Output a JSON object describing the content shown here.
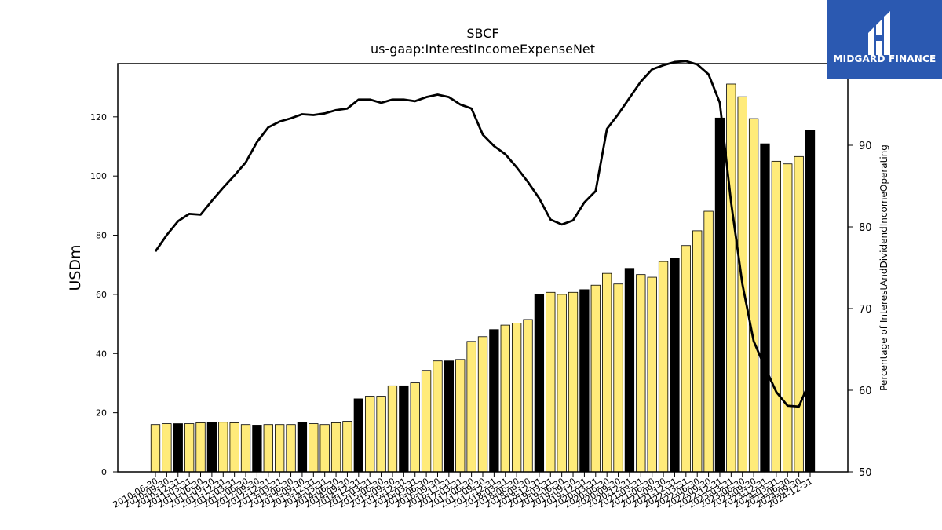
{
  "chart_data": {
    "type": "bar",
    "title": "SBCF",
    "subtitle": "us-gaap:InterestIncomeExpenseNet",
    "ylabel": "USDm",
    "y2label": "Percentage of InterestAndDividendIncomeOperating",
    "ylim": [
      0,
      138
    ],
    "y2lim": [
      50,
      100
    ],
    "yticks": [
      0,
      20,
      40,
      60,
      80,
      100,
      120
    ],
    "y2ticks": [
      50,
      60,
      70,
      80,
      90
    ],
    "categories": [
      "2010-06-30",
      "2010-09-30",
      "2010-12-31",
      "2011-03-31",
      "2011-06-30",
      "2011-09-30",
      "2011-12-31",
      "2012-03-31",
      "2012-06-30",
      "2012-09-30",
      "2012-12-31",
      "2013-03-31",
      "2013-06-30",
      "2013-09-30",
      "2013-12-31",
      "2014-03-31",
      "2014-06-30",
      "2014-09-30",
      "2014-12-31",
      "2015-03-31",
      "2015-06-30",
      "2015-09-30",
      "2015-12-31",
      "2016-03-31",
      "2016-06-30",
      "2016-09-30",
      "2016-12-31",
      "2017-03-31",
      "2017-06-30",
      "2017-09-30",
      "2017-12-31",
      "2018-03-31",
      "2018-06-30",
      "2018-09-30",
      "2018-12-31",
      "2019-03-31",
      "2019-06-30",
      "2019-09-30",
      "2019-12-31",
      "2020-03-31",
      "2020-06-30",
      "2020-09-30",
      "2020-12-31",
      "2021-03-31",
      "2021-06-30",
      "2021-09-30",
      "2021-12-31",
      "2022-03-31",
      "2022-06-30",
      "2022-09-30",
      "2022-12-31",
      "2023-03-31",
      "2023-06-30",
      "2023-09-30",
      "2023-12-31",
      "2024-03-31",
      "2024-06-30",
      "2024-09-30",
      "2024-12-31"
    ],
    "series": [
      {
        "kind": "bar",
        "axis": "left",
        "values": [
          16.0,
          16.3,
          16.3,
          16.3,
          16.6,
          16.8,
          16.8,
          16.6,
          16.0,
          15.8,
          16.0,
          16.0,
          16.0,
          16.8,
          16.3,
          16.0,
          16.6,
          17.1,
          24.7,
          25.6,
          25.6,
          29.1,
          29.1,
          30.1,
          34.3,
          37.5,
          37.5,
          38.0,
          44.1,
          45.7,
          48.1,
          49.6,
          50.3,
          51.5,
          60.0,
          60.7,
          60.0,
          60.7,
          61.6,
          63.1,
          67.1,
          63.5,
          68.8,
          66.7,
          65.8,
          71.1,
          72.1,
          76.5,
          81.5,
          88.1,
          119.6,
          131.1,
          126.8,
          119.4,
          110.9,
          105.0,
          104.1,
          106.6,
          115.6
        ],
        "highlighted": [
          false,
          false,
          true,
          false,
          false,
          true,
          false,
          false,
          false,
          true,
          false,
          false,
          false,
          true,
          false,
          false,
          false,
          false,
          true,
          false,
          false,
          false,
          true,
          false,
          false,
          false,
          true,
          false,
          false,
          false,
          true,
          false,
          false,
          false,
          true,
          false,
          false,
          false,
          true,
          false,
          false,
          false,
          true,
          false,
          false,
          false,
          true,
          false,
          false,
          false,
          true,
          false,
          false,
          false,
          true,
          false,
          false,
          false,
          true
        ]
      },
      {
        "kind": "line",
        "axis": "right",
        "values": [
          77.0,
          79.0,
          80.7,
          81.6,
          81.5,
          83.2,
          84.8,
          86.3,
          87.9,
          90.4,
          92.2,
          92.9,
          93.3,
          93.8,
          93.7,
          93.9,
          94.3,
          94.5,
          95.6,
          95.6,
          95.2,
          95.6,
          95.6,
          95.4,
          95.9,
          96.2,
          95.9,
          95.0,
          94.5,
          91.3,
          89.9,
          88.9,
          87.3,
          85.5,
          83.5,
          80.9,
          80.3,
          80.8,
          83.0,
          84.4,
          92.0,
          93.8,
          95.8,
          97.8,
          99.3,
          99.8,
          100.2,
          100.3,
          99.9,
          98.7,
          95.2,
          83.0,
          73.0,
          66.0,
          62.8,
          59.8,
          58.1,
          58.0,
          61.2
        ]
      }
    ],
    "colors": {
      "bar": "#ffeb7a",
      "bar_highlight": "#000000",
      "line": "#000000"
    },
    "legend": "none",
    "grid": false
  },
  "logo": {
    "name": "MIDGARD FINANCE",
    "background": "#2b59b1"
  }
}
